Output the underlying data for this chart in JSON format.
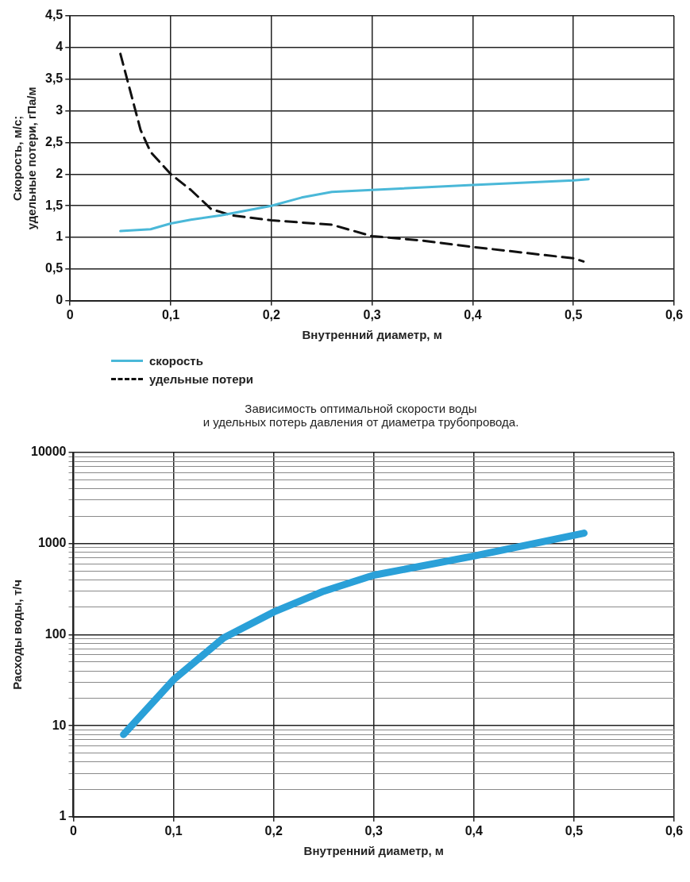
{
  "chart_data": [
    {
      "type": "line",
      "xlabel": "Внутренний диаметр, м",
      "ylabel": "Скорость, м/с;\nудельные потери, гПа/м",
      "xlim": [
        0,
        0.6
      ],
      "xticks": [
        0,
        {
          "value": 0.1,
          "label": "0,1"
        },
        {
          "value": 0.2,
          "label": "0,2"
        },
        {
          "value": 0.3,
          "label": "0,3"
        },
        {
          "value": 0.4,
          "label": "0,4"
        },
        {
          "value": 0.5,
          "label": "0,5"
        },
        {
          "value": 0.6,
          "label": "0,6"
        }
      ],
      "ylim": [
        0,
        4.5
      ],
      "yticks": [
        0,
        {
          "value": 0.5,
          "label": "0,5"
        },
        1,
        {
          "value": 1.5,
          "label": "1,5"
        },
        2,
        {
          "value": 2.5,
          "label": "2,5"
        },
        3,
        {
          "value": 3.5,
          "label": "3,5"
        },
        4,
        {
          "value": 4.5,
          "label": "4,5"
        }
      ],
      "grid": true,
      "legend": "bottom left",
      "marker": "none",
      "series": [
        {
          "name": "скорость",
          "color": "#4ab8d8",
          "line_style": "solid",
          "x": [
            0.05,
            0.08,
            0.1,
            0.12,
            0.15,
            0.2,
            0.23,
            0.26,
            0.3,
            0.4,
            0.5,
            0.515
          ],
          "values": [
            1.1,
            1.13,
            1.22,
            1.28,
            1.35,
            1.5,
            1.63,
            1.72,
            1.75,
            1.83,
            1.9,
            1.92
          ]
        },
        {
          "name": "удельные потери",
          "color": "#111111",
          "line_style": "dashed",
          "x": [
            0.05,
            0.06,
            0.07,
            0.08,
            0.1,
            0.12,
            0.14,
            0.16,
            0.2,
            0.26,
            0.3,
            0.35,
            0.4,
            0.5,
            0.51
          ],
          "values": [
            3.9,
            3.3,
            2.7,
            2.35,
            2.0,
            1.75,
            1.45,
            1.35,
            1.27,
            1.2,
            1.02,
            0.95,
            0.85,
            0.67,
            0.62
          ]
        }
      ],
      "annotations": [
        "Зависимость оптимальной скорости воды\nи удельных потерь давления от диаметра трубопровода."
      ]
    },
    {
      "type": "line",
      "xlabel": "Внутренний диаметр, м",
      "ylabel": "Расходы воды, т/ч",
      "log": "y",
      "xlim": [
        0,
        0.6
      ],
      "xticks": [
        0,
        {
          "value": 0.1,
          "label": "0,1"
        },
        {
          "value": 0.2,
          "label": "0,2"
        },
        {
          "value": 0.3,
          "label": "0,3"
        },
        {
          "value": 0.4,
          "label": "0,4"
        },
        {
          "value": 0.5,
          "label": "0,5"
        },
        {
          "value": 0.6,
          "label": "0,6"
        }
      ],
      "ylim": [
        1,
        10000
      ],
      "yticks": [
        1,
        {
          "value": 2,
          "label": null
        },
        {
          "value": 3,
          "label": null
        },
        {
          "value": 4,
          "label": null
        },
        {
          "value": 5,
          "label": null
        },
        {
          "value": 6,
          "label": null
        },
        {
          "value": 7,
          "label": null
        },
        {
          "value": 8,
          "label": null
        },
        {
          "value": 9,
          "label": null
        },
        10,
        {
          "value": 20,
          "label": null
        },
        {
          "value": 30,
          "label": null
        },
        {
          "value": 40,
          "label": null
        },
        {
          "value": 50,
          "label": null
        },
        {
          "value": 60,
          "label": null
        },
        {
          "value": 70,
          "label": null
        },
        {
          "value": 80,
          "label": null
        },
        {
          "value": 90,
          "label": null
        },
        100,
        {
          "value": 200,
          "label": null
        },
        {
          "value": 300,
          "label": null
        },
        {
          "value": 400,
          "label": null
        },
        {
          "value": 500,
          "label": null
        },
        {
          "value": 600,
          "label": null
        },
        {
          "value": 700,
          "label": null
        },
        {
          "value": 800,
          "label": null
        },
        {
          "value": 900,
          "label": null
        },
        1000,
        {
          "value": 2000,
          "label": null
        },
        {
          "value": 3000,
          "label": null
        },
        {
          "value": 4000,
          "label": null
        },
        {
          "value": 5000,
          "label": null
        },
        {
          "value": 6000,
          "label": null
        },
        {
          "value": 7000,
          "label": null
        },
        {
          "value": 8000,
          "label": null
        },
        {
          "value": 9000,
          "label": null
        },
        10000
      ],
      "grid": true,
      "marker": "none",
      "series": [
        {
          "color": "#2aa0d8",
          "line_style": "solid",
          "x": [
            0.05,
            0.1,
            0.15,
            0.2,
            0.25,
            0.3,
            0.4,
            0.51
          ],
          "values": [
            8,
            32,
            92,
            177,
            300,
            450,
            730,
            1300
          ]
        }
      ]
    }
  ]
}
